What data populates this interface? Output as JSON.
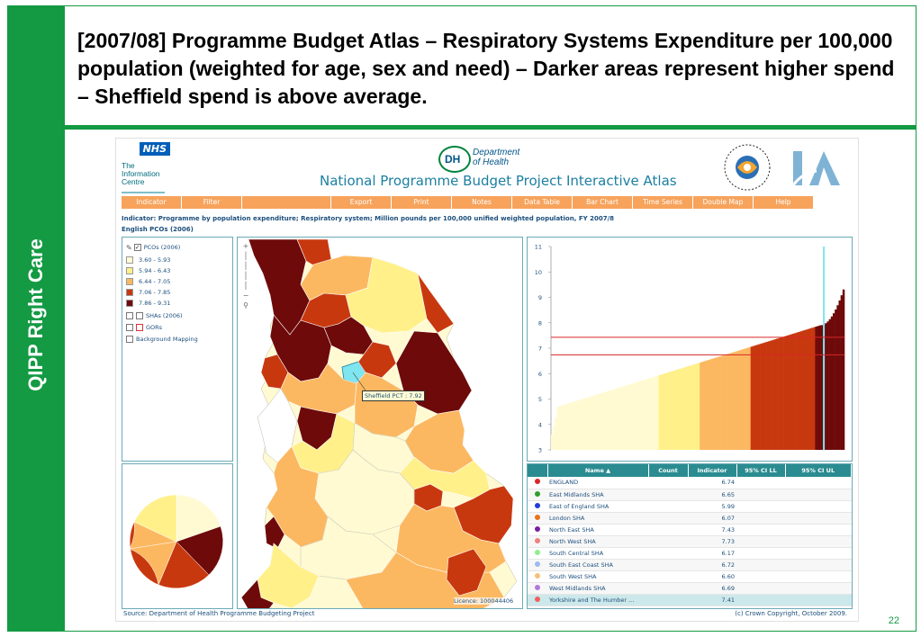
{
  "slide": {
    "title": "[2007/08] Programme Budget Atlas – Respiratory Systems Expenditure per 100,000 population (weighted for age, sex and need) – Darker areas represent higher spend – Sheffield spend is above average.",
    "side_label": "QIPP Right Care",
    "page_number": "22"
  },
  "header": {
    "nhs_badge": "NHS",
    "info_centre": "The Information Centre",
    "dh_mark": "DH",
    "dh_text_1": "Department",
    "dh_text_2": "of Health",
    "atlas_title": "National Programme Budget Project Interactive Atlas"
  },
  "menu": {
    "items": [
      "Indicator",
      "Filter",
      "Export",
      "Print",
      "Notes",
      "Data Table",
      "Bar Chart",
      "Time Series",
      "Double Map",
      "Help"
    ]
  },
  "indicator_text": "Indicator: Programme by population expenditure; Respiratory system; Million pounds per 100,000 unified weighted population, FY 2007/8",
  "geography_text": "English PCOs (2006)",
  "legend": {
    "layer": "PCOs (2006)",
    "classes": [
      {
        "label": "3.60 - 5.93",
        "color": "#fffad2"
      },
      {
        "label": "5.94 - 6.43",
        "color": "#fff08a"
      },
      {
        "label": "6.44 - 7.05",
        "color": "#fcb861"
      },
      {
        "label": "7.06 - 7.85",
        "color": "#c8380f"
      },
      {
        "label": "7.86 - 9.31",
        "color": "#6e0a0a"
      }
    ],
    "layers": [
      "SHAs (2006)",
      "GORs",
      "Background Mapping"
    ]
  },
  "map": {
    "callout": "Sheffield PCT : 7.92",
    "licence": "Licence: 100044406"
  },
  "bar_chart": {
    "y_ticks": [
      "11",
      "10",
      "9",
      "8",
      "7",
      "6",
      "5",
      "4",
      "3"
    ],
    "reference_lines": [
      7.43,
      6.74
    ],
    "highlight_value": 7.92
  },
  "table": {
    "headers": [
      "Name",
      "Count",
      "Indicator",
      "95% CI LL",
      "95% CI UL"
    ],
    "rows": [
      {
        "name": "ENGLAND",
        "indicator": "6.74",
        "dot": "#d62728"
      },
      {
        "name": "East Midlands SHA",
        "indicator": "6.65",
        "dot": "#2ca02c"
      },
      {
        "name": "East of England SHA",
        "indicator": "5.99",
        "dot": "#1f3fd8"
      },
      {
        "name": "London SHA",
        "indicator": "6.07",
        "dot": "#e8731a"
      },
      {
        "name": "North East SHA",
        "indicator": "7.43",
        "dot": "#7b1fa2"
      },
      {
        "name": "North West SHA",
        "indicator": "7.73",
        "dot": "#f08080"
      },
      {
        "name": "South Central SHA",
        "indicator": "6.17",
        "dot": "#90ee90"
      },
      {
        "name": "South East Coast SHA",
        "indicator": "6.72",
        "dot": "#9fb8f0"
      },
      {
        "name": "South West SHA",
        "indicator": "6.60",
        "dot": "#f5c07a"
      },
      {
        "name": "West Midlands SHA",
        "indicator": "6.69",
        "dot": "#b07ad8"
      },
      {
        "name": "Yorkshire and The Humber ...",
        "indicator": "7.41",
        "dot": "#f06060"
      }
    ]
  },
  "footer": {
    "source": "Source: Department of Health Programme Budgeting Project",
    "copyright": "(c) Crown Copyright, October 2009."
  }
}
